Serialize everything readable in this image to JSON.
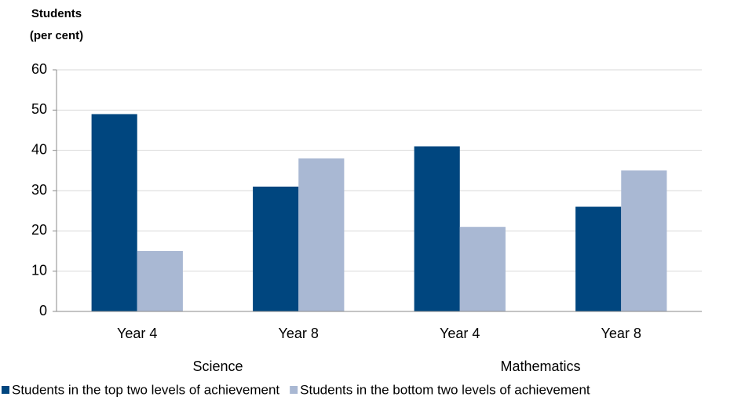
{
  "chart_data": {
    "type": "bar",
    "y_label": [
      "Students",
      "(per cent)"
    ],
    "groups": [
      {
        "name": "Science",
        "categories": [
          "Year 4",
          "Year 8"
        ]
      },
      {
        "name": "Mathematics",
        "categories": [
          "Year 4",
          "Year 8"
        ]
      }
    ],
    "series": [
      {
        "name": "Students in the top two levels of achievement",
        "color": "#00467f",
        "values": [
          49,
          31,
          41,
          26
        ]
      },
      {
        "name": "Students in the bottom two levels of achievement",
        "color": "#a9b8d3",
        "values": [
          15,
          38,
          21,
          35
        ]
      }
    ],
    "ylim": [
      0,
      60
    ],
    "yticks": [
      0,
      10,
      20,
      30,
      40,
      50,
      60
    ],
    "grid": true,
    "legend": "bottom"
  }
}
